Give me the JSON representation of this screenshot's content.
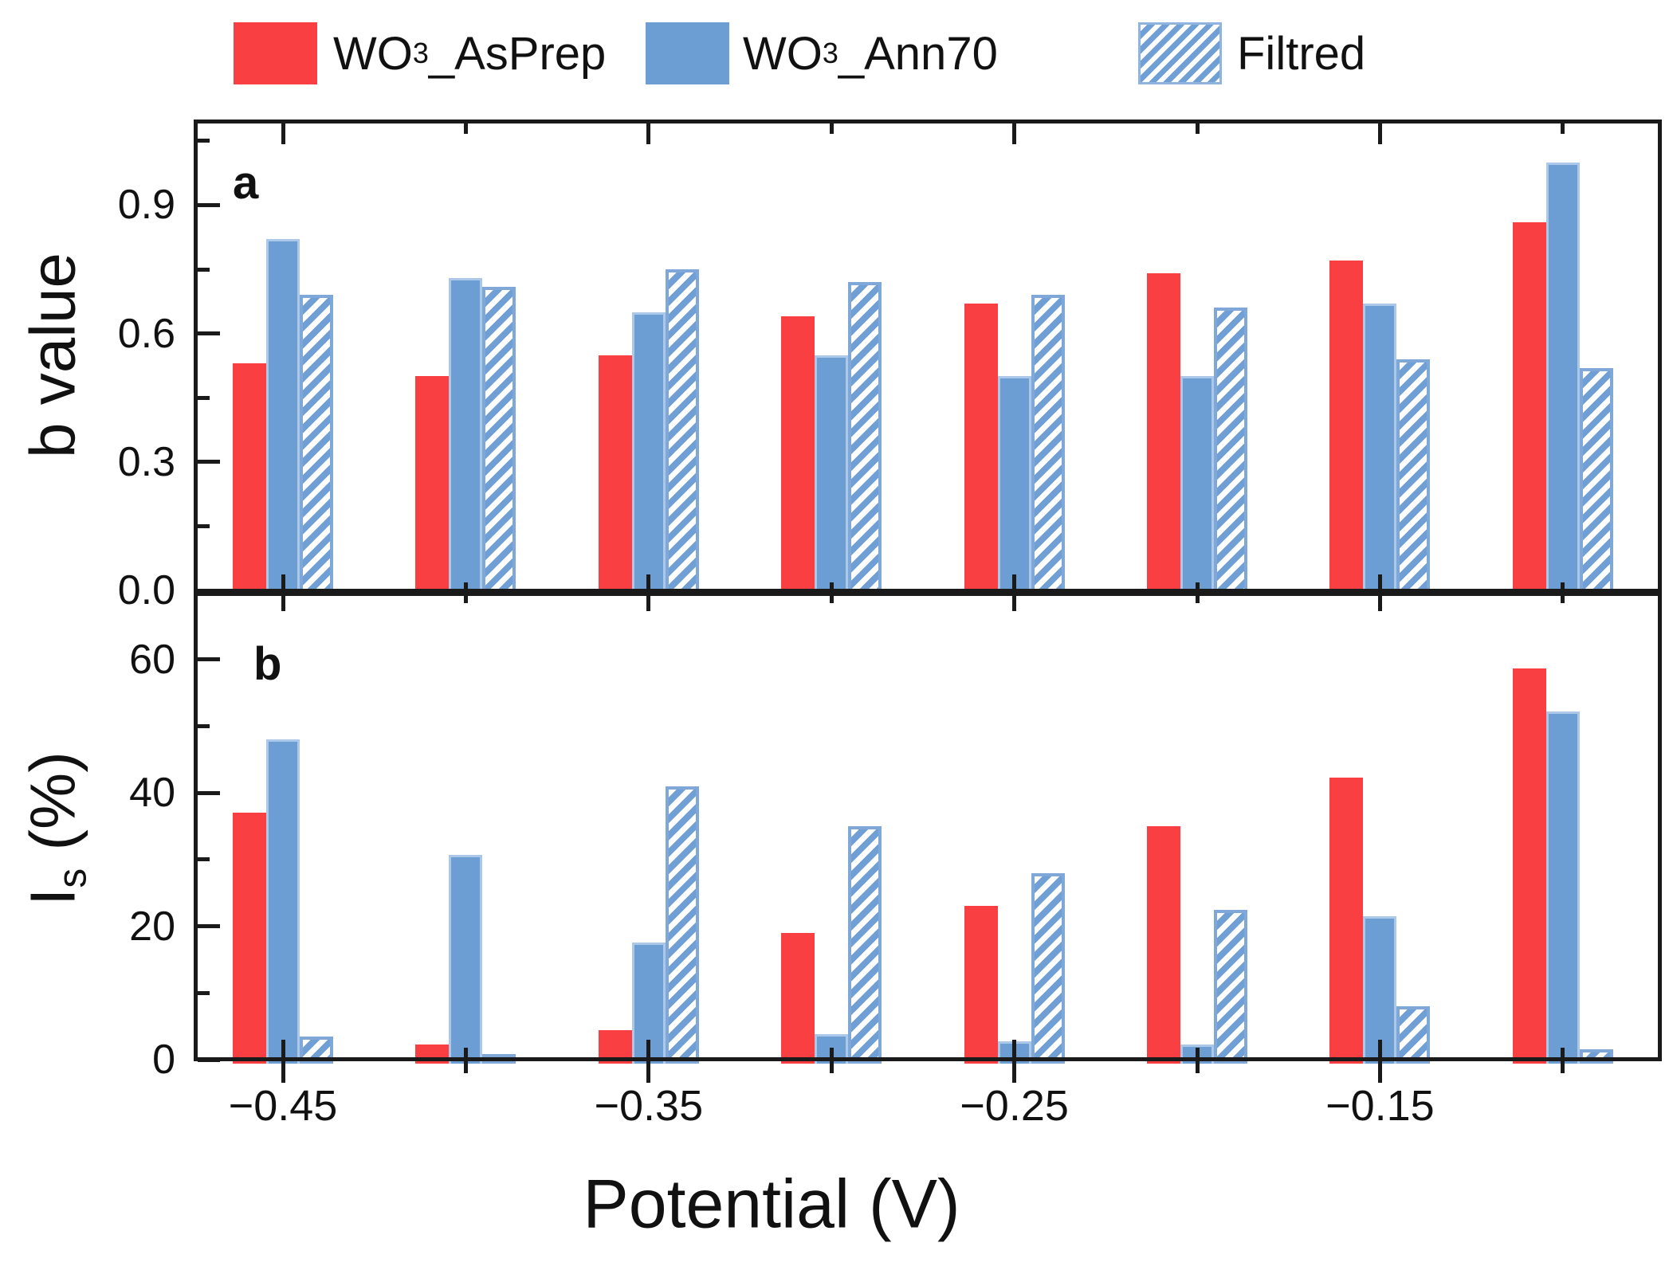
{
  "legend": {
    "items": [
      {
        "pre": "WO",
        "sub": "3",
        "post": "_AsPrep",
        "swatch": "solid-red",
        "color": "#fa3f43"
      },
      {
        "pre": "WO",
        "sub": "3",
        "post": "_Ann70",
        "swatch": "solid-blue",
        "color": "#6d9ed3"
      },
      {
        "pre": "Filtred",
        "sub": "",
        "post": "",
        "swatch": "hatched-blue",
        "color": "#6f9fd4"
      }
    ]
  },
  "chart_data": {
    "type": "bar",
    "grid": "off",
    "legend_position": "top",
    "x_axis": {
      "title": "Potential (V)",
      "categories_V": [
        -0.45,
        -0.4,
        -0.35,
        -0.3,
        -0.25,
        -0.2,
        -0.15,
        -0.1
      ],
      "major_tick_labels": [
        "−0.45",
        "−0.35",
        "−0.25",
        "−0.15"
      ],
      "major_tick_positions_V": [
        -0.45,
        -0.35,
        -0.25,
        -0.15
      ],
      "minor_tick_positions_V": [
        -0.4,
        -0.3,
        -0.2,
        -0.1
      ]
    },
    "panels": [
      {
        "panel_letter": "a",
        "ylabel_pre": "b value",
        "ylabel_sub": "",
        "ylabel_post": "",
        "ylim": [
          0,
          1.1
        ],
        "ytick_values": [
          0.0,
          0.3,
          0.6,
          0.9
        ],
        "ytick_labels": [
          "0.0",
          "0.3",
          "0.6",
          "0.9"
        ],
        "yminor_values": [
          0.15,
          0.45,
          0.75,
          1.05
        ],
        "series": [
          {
            "key": "asprep",
            "name": "WO3_AsPrep",
            "color": "#fa3f43",
            "values": [
              0.53,
              0.5,
              0.55,
              0.64,
              0.67,
              0.74,
              0.77,
              0.86
            ]
          },
          {
            "key": "ann70",
            "name": "WO3_Ann70",
            "color": "#6d9ed3",
            "values": [
              0.82,
              0.73,
              0.65,
              0.55,
              0.5,
              0.5,
              0.67,
              1.0
            ]
          },
          {
            "key": "filtred",
            "name": "Filtred",
            "style": "hatched",
            "values": [
              0.69,
              0.71,
              0.75,
              0.72,
              0.69,
              0.66,
              0.54,
              0.52
            ]
          }
        ]
      },
      {
        "panel_letter": "b",
        "ylabel_pre": "I",
        "ylabel_sub": "s",
        "ylabel_post": " (%)",
        "ylim": [
          0,
          69.5
        ],
        "ytick_values": [
          0,
          20,
          40,
          60
        ],
        "ytick_labels": [
          "0",
          "20",
          "40",
          "60"
        ],
        "yminor_values": [
          10,
          30,
          50
        ],
        "series": [
          {
            "key": "asprep",
            "name": "WO3_AsPrep",
            "color": "#fa3f43",
            "values": [
              37,
              2.3,
              4.4,
              19,
              23,
              35,
              42.3,
              58.6
            ]
          },
          {
            "key": "ann70",
            "name": "WO3_Ann70",
            "color": "#6d9ed3",
            "values": [
              48,
              30.7,
              17.6,
              3.8,
              2.7,
              2.3,
              21.5,
              52.2
            ]
          },
          {
            "key": "filtred",
            "name": "Filtred",
            "style": "hatched",
            "values": [
              3.5,
              0.8,
              41,
              35,
              28,
              22.4,
              8,
              1.6
            ]
          }
        ]
      }
    ]
  }
}
